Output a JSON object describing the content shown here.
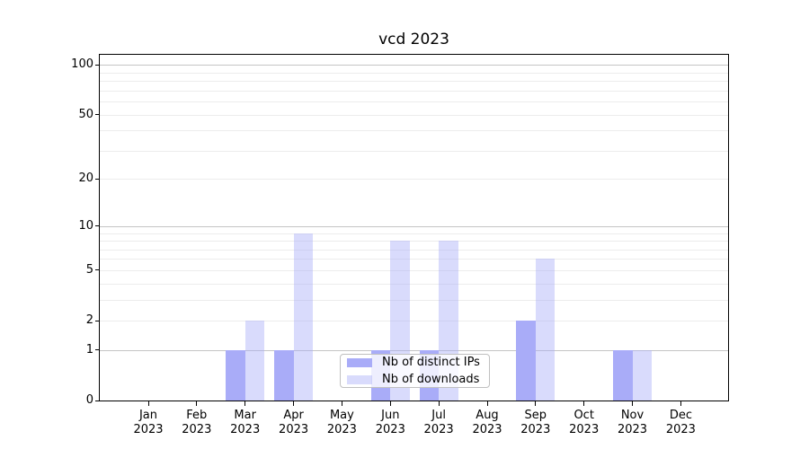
{
  "chart_data": {
    "type": "bar",
    "title": "vcd 2023",
    "categories": [
      "Jan 2023",
      "Feb 2023",
      "Mar 2023",
      "Apr 2023",
      "May 2023",
      "Jun 2023",
      "Jul 2023",
      "Aug 2023",
      "Sep 2023",
      "Oct 2023",
      "Nov 2023",
      "Dec 2023"
    ],
    "series": [
      {
        "name": "Nb of distinct IPs",
        "color": "#a9acf8",
        "alpha": 1,
        "values": [
          0,
          0,
          1,
          1,
          0,
          1,
          1,
          0,
          2,
          0,
          1,
          0
        ]
      },
      {
        "name": "Nb of downloads",
        "color": "#a9acf8",
        "alpha": 0.44,
        "values": [
          0,
          0,
          2,
          9,
          0,
          8,
          8,
          0,
          6,
          0,
          1,
          0
        ]
      }
    ],
    "xlabel": "",
    "ylabel": "",
    "yscale": "log1p",
    "ylim": [
      0,
      115
    ],
    "yticks": [
      0,
      1,
      2,
      5,
      10,
      20,
      50,
      100
    ],
    "major_grid_values": [
      1,
      10,
      100
    ],
    "minor_grid_values": [
      2,
      3,
      4,
      5,
      6,
      7,
      8,
      9,
      20,
      30,
      40,
      50,
      60,
      70,
      80,
      90
    ],
    "grid_major_color": "#c4c4c4",
    "grid_minor_color": "#ececec",
    "legend_position": "lower center",
    "background_color": "#ffffff",
    "axis_color": "#000000"
  }
}
